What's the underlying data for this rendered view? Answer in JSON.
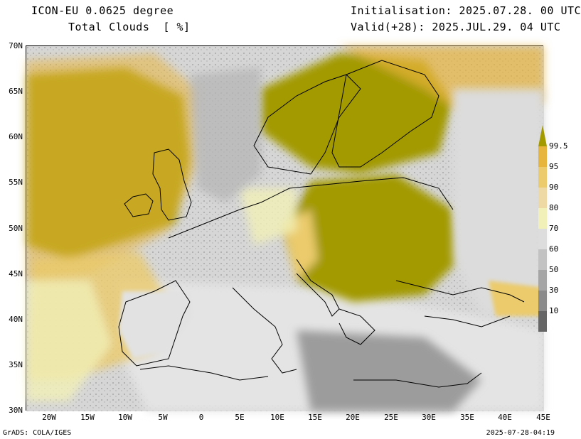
{
  "header": {
    "model": "ICON-EU 0.0625 degree",
    "variable": "Total Clouds  [ %]",
    "initialisation": "Initialisation: 2025.07.28. 00 UTC",
    "valid": "Valid(+28): 2025.JUL.29. 04 UTC"
  },
  "axes": {
    "lat_labels": [
      "70N",
      "65N",
      "60N",
      "55N",
      "50N",
      "45N",
      "40N",
      "35N",
      "30N"
    ],
    "lon_labels": [
      "20W",
      "15W",
      "10W",
      "5W",
      "0",
      "5E",
      "10E",
      "15E",
      "20E",
      "25E",
      "30E",
      "35E",
      "40E",
      "45E"
    ]
  },
  "colorbar": {
    "labels": [
      "99.5",
      "95",
      "90",
      "80",
      "70",
      "60",
      "50",
      "30",
      "10"
    ],
    "colors": [
      "#a39a00",
      "#e7b43c",
      "#ebcb6c",
      "#eed8a4",
      "#f1f0b8",
      "#dddddd",
      "#c2c2c2",
      "#a5a5a5",
      "#8a8a8a",
      "#666666"
    ]
  },
  "footer": {
    "left": "GrADS: COLA/IGES",
    "right": "2025-07-28-04:19"
  }
}
